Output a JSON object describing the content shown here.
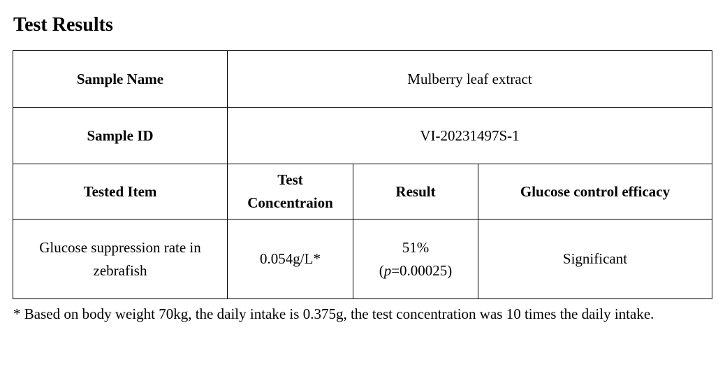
{
  "title": "Test Results",
  "table": {
    "sample_name_label": "Sample Name",
    "sample_name_value": "Mulberry leaf extract",
    "sample_id_label": "Sample ID",
    "sample_id_value": "VI-20231497S-1",
    "headers": {
      "tested_item": "Tested Item",
      "test_concentration_line1": "Test",
      "test_concentration_line2": "Concentraion",
      "result": "Result",
      "efficacy": "Glucose control efficacy"
    },
    "row": {
      "tested_item_line1": "Glucose suppression rate in",
      "tested_item_line2": "zebrafish",
      "concentration": "0.054g/L*",
      "result_percent": "51%",
      "result_p_open": "(",
      "result_p_var": "p",
      "result_p_value": "=0.00025)",
      "efficacy": "Significant"
    }
  },
  "footnote": "* Based on body weight 70kg, the daily intake is 0.375g, the test concentration was 10 times the daily intake."
}
